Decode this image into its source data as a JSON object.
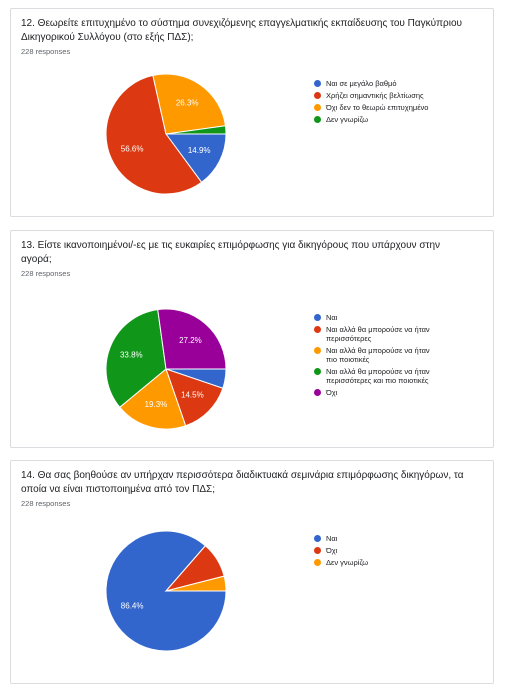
{
  "chart_data": [
    {
      "type": "pie",
      "title": "12. Θεωρείτε επιτυχημένο το σύστημα συνεχιζόμενης επαγγελματικής εκπαίδευσης του Παγκύπριου Δικηγορικού Συλλόγου (στο εξής ΠΔΣ);",
      "subtitle": "228 responses",
      "categories": [
        "Ναι σε μεγάλο βαθμό",
        "Χρήζει σημαντικής βελτίωσης",
        "Όχι δεν το θεωρώ επιτυχημένο",
        "Δεν γνωρίζω"
      ],
      "values": [
        14.9,
        56.6,
        26.3,
        2.2
      ],
      "value_labels": [
        "14.9%",
        "56.6%",
        "26.3%",
        null
      ],
      "colors": [
        "#3366cc",
        "#dc3912",
        "#ff9900",
        "#109618"
      ]
    },
    {
      "type": "pie",
      "title": "13. Είστε ικανοποιημένοι/-ες με τις ευκαιρίες επιμόρφωσης για δικηγόρους που υπάρχουν στην αγορά;",
      "subtitle": "228 responses",
      "categories": [
        "Ναι",
        "Ναι αλλά θα μπορούσε να ήταν περισσότερες",
        "Ναι αλλά θα μπορούσε να ήταν πιο ποιοτικές",
        "Ναι αλλά θα μπορούσε να ήταν περισσότερες και πιο ποιοτικές",
        "Όχι"
      ],
      "values": [
        5.2,
        14.5,
        19.3,
        33.8,
        27.2
      ],
      "value_labels": [
        null,
        "14.5%",
        "19.3%",
        "33.8%",
        "27.2%"
      ],
      "colors": [
        "#3366cc",
        "#dc3912",
        "#ff9900",
        "#109618",
        "#990099"
      ]
    },
    {
      "type": "pie",
      "title": "14. Θα σας βοηθούσε αν υπήρχαν περισσότερα διαδικτυακά σεμινάρια επιμόρφωσης δικηγόρων, τα οποία να είναι πιστοποιημένα από τον ΠΔΣ;",
      "subtitle": "228 responses",
      "categories": [
        "Ναι",
        "Όχι",
        "Δεν γνωρίζω"
      ],
      "values": [
        86.4,
        9.6,
        4.0
      ],
      "value_labels": [
        "86.4%",
        null,
        null
      ],
      "colors": [
        "#3366cc",
        "#dc3912",
        "#ff9900"
      ]
    }
  ]
}
